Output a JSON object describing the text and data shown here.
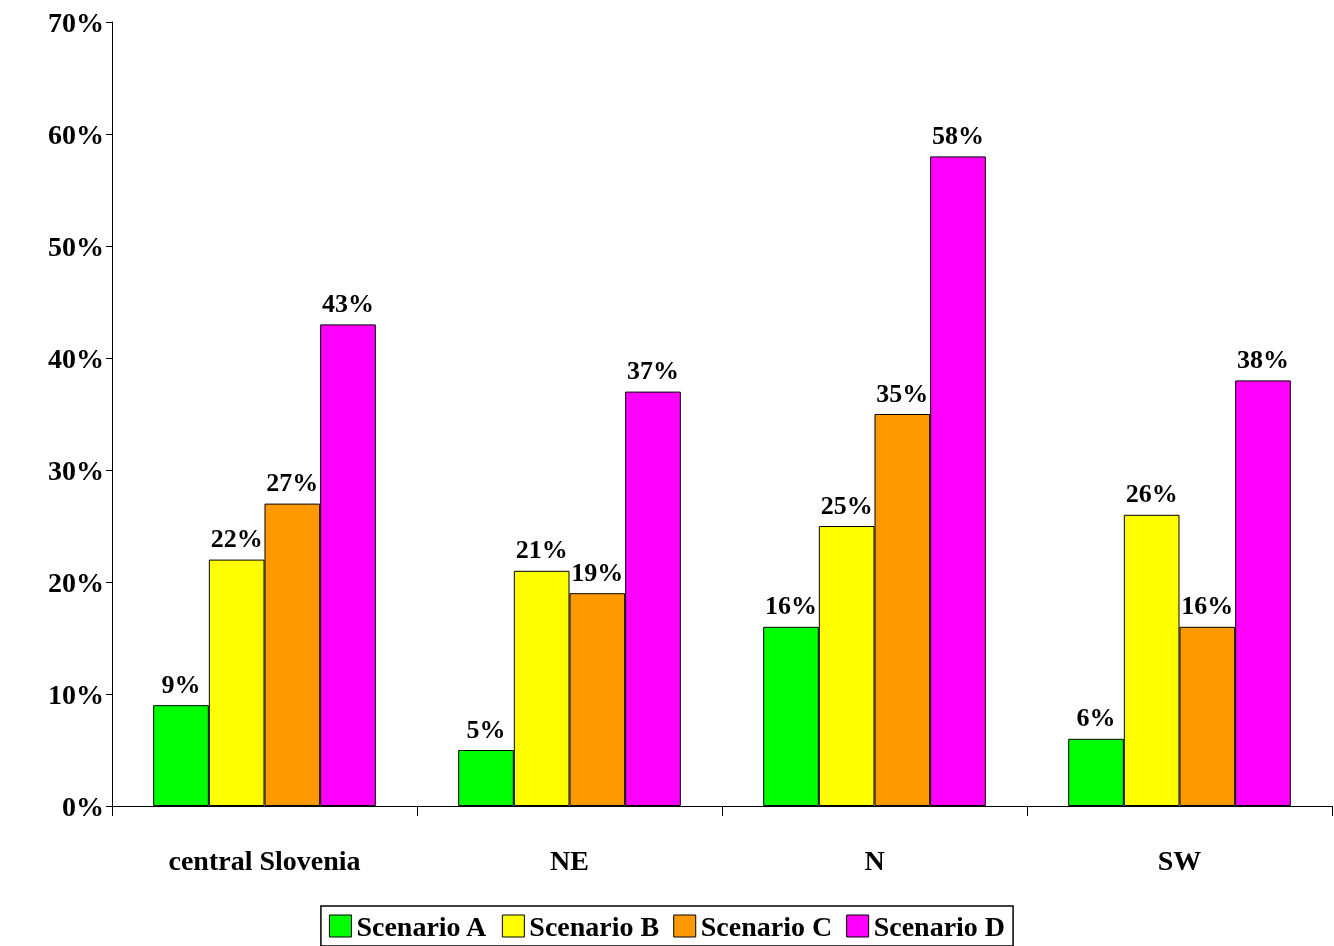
{
  "chart_data": {
    "type": "bar",
    "categories": [
      "central Slovenia",
      "NE",
      "N",
      "SW"
    ],
    "series": [
      {
        "name": "Scenario A",
        "color": "#00ff00",
        "values": [
          9,
          5,
          16,
          6
        ],
        "value_labels": [
          "9%",
          "5%",
          "16%",
          "6%"
        ]
      },
      {
        "name": "Scenario B",
        "color": "#ffff00",
        "values": [
          22,
          21,
          25,
          26
        ],
        "value_labels": [
          "22%",
          "21%",
          "25%",
          "26%"
        ]
      },
      {
        "name": "Scenario C",
        "color": "#ff9900",
        "values": [
          27,
          19,
          35,
          16
        ],
        "value_labels": [
          "27%",
          "19%",
          "35%",
          "16%"
        ]
      },
      {
        "name": "Scenario D",
        "color": "#ff00ff",
        "values": [
          43,
          37,
          58,
          38
        ],
        "value_labels": [
          "43%",
          "37%",
          "58%",
          "38%"
        ]
      }
    ],
    "ylim": [
      0,
      70
    ],
    "yticks": [
      {
        "value": 0,
        "label": "0%"
      },
      {
        "value": 10,
        "label": "10%"
      },
      {
        "value": 20,
        "label": "20%"
      },
      {
        "value": 30,
        "label": "30%"
      },
      {
        "value": 40,
        "label": "40%"
      },
      {
        "value": 50,
        "label": "50%"
      },
      {
        "value": 60,
        "label": "60%"
      },
      {
        "value": 70,
        "label": "70%"
      }
    ],
    "grid": false,
    "legend": "bottom"
  }
}
